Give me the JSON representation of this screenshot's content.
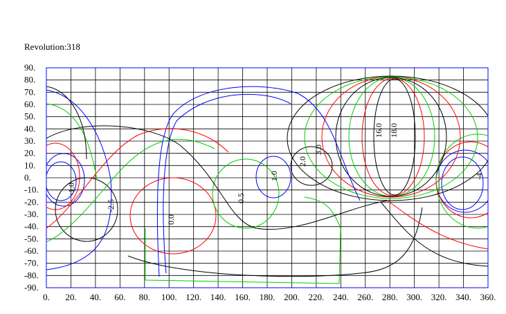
{
  "chart_data": {
    "type": "contour",
    "title": "Revolution:318",
    "xlim": [
      0,
      360
    ],
    "ylim": [
      -90,
      90
    ],
    "xticks": [
      {
        "value": 0,
        "label": "0."
      },
      {
        "value": 20,
        "label": "20."
      },
      {
        "value": 40,
        "label": "40."
      },
      {
        "value": 60,
        "label": "60."
      },
      {
        "value": 80,
        "label": "80."
      },
      {
        "value": 100,
        "label": "100."
      },
      {
        "value": 120,
        "label": "120."
      },
      {
        "value": 140,
        "label": "140."
      },
      {
        "value": 160,
        "label": "160."
      },
      {
        "value": 180,
        "label": "180."
      },
      {
        "value": 200,
        "label": "200."
      },
      {
        "value": 220,
        "label": "220."
      },
      {
        "value": 240,
        "label": "240."
      },
      {
        "value": 260,
        "label": "260."
      },
      {
        "value": 280,
        "label": "280."
      },
      {
        "value": 300,
        "label": "300."
      },
      {
        "value": 320,
        "label": "320."
      },
      {
        "value": 340,
        "label": "340."
      },
      {
        "value": 360,
        "label": "360."
      }
    ],
    "yticks": [
      {
        "value": 90,
        "label": "90."
      },
      {
        "value": 80,
        "label": "80."
      },
      {
        "value": 70,
        "label": "70."
      },
      {
        "value": 60,
        "label": "60."
      },
      {
        "value": 50,
        "label": "50."
      },
      {
        "value": 40,
        "label": "40."
      },
      {
        "value": 30,
        "label": "30."
      },
      {
        "value": 20,
        "label": "20."
      },
      {
        "value": 10,
        "label": "10."
      },
      {
        "value": 0,
        "label": "0."
      },
      {
        "value": -10,
        "label": "-10."
      },
      {
        "value": -20,
        "label": "-20."
      },
      {
        "value": -30,
        "label": "-30."
      },
      {
        "value": -40,
        "label": "-40."
      },
      {
        "value": -50,
        "label": "-50."
      },
      {
        "value": -60,
        "label": "-60."
      },
      {
        "value": -70,
        "label": "-70."
      },
      {
        "value": -80,
        "label": "-80."
      },
      {
        "value": -90,
        "label": "-90."
      }
    ],
    "grid": true,
    "annotations": [
      "1.0",
      "0.5",
      "2.0",
      "3.0",
      "-2.5",
      "0.0",
      "-1.0",
      "16.0",
      "18.0",
      "-4"
    ]
  }
}
